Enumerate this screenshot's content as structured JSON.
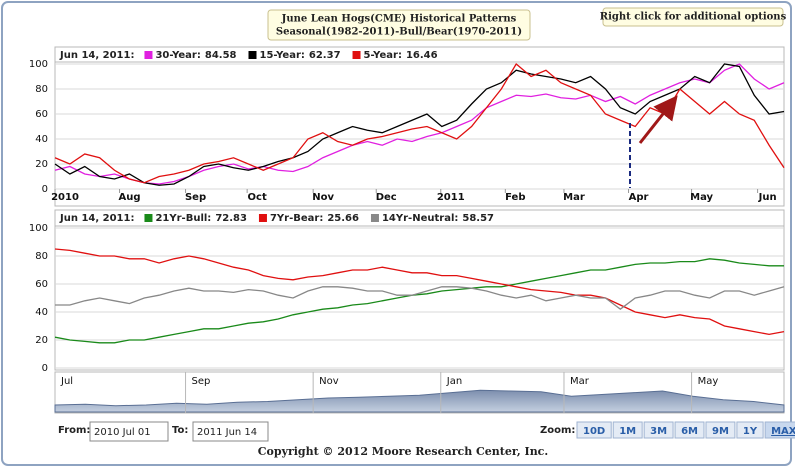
{
  "header": {
    "title": [
      "June Lean Hogs(CME) Historical Patterns",
      "Seasonal(1982-2011)-Bull/Bear(1970-2011)"
    ],
    "options": "Right click for additional options"
  },
  "chart_data": [
    {
      "type": "line",
      "legend_date": "Jun 14, 2011:",
      "xlim": [
        0,
        49.7
      ],
      "ylim": [
        0,
        100
      ],
      "yticks": [
        0,
        20,
        40,
        60,
        80,
        100
      ],
      "grid": true,
      "xticks": [
        {
          "value": 0,
          "label": "2010"
        },
        {
          "value": 4.4,
          "label": "Aug"
        },
        {
          "value": 8.9,
          "label": "Sep"
        },
        {
          "value": 13.1,
          "label": "Oct"
        },
        {
          "value": 17.6,
          "label": "Nov"
        },
        {
          "value": 21.9,
          "label": "Dec"
        },
        {
          "value": 26.3,
          "label": "2011"
        },
        {
          "value": 30.7,
          "label": "Feb"
        },
        {
          "value": 34.7,
          "label": "Mar"
        },
        {
          "value": 39.1,
          "label": "Apr"
        },
        {
          "value": 43.4,
          "label": "May"
        },
        {
          "value": 47.9,
          "label": "Jun"
        }
      ],
      "series": [
        {
          "name": "30-Year:",
          "current": 84.58,
          "color": "#e020e0",
          "values": [
            15,
            18,
            12,
            10,
            12,
            8,
            5,
            4,
            6,
            10,
            15,
            18,
            20,
            16,
            18,
            15,
            14,
            18,
            25,
            30,
            35,
            38,
            35,
            40,
            38,
            42,
            45,
            50,
            55,
            65,
            70,
            75,
            74,
            76,
            73,
            72,
            75,
            70,
            74,
            68,
            75,
            80,
            85,
            88,
            85,
            95,
            100,
            88,
            80,
            85
          ]
        },
        {
          "name": "15-Year:",
          "current": 62.37,
          "color": "#000000",
          "values": [
            20,
            12,
            18,
            10,
            8,
            12,
            5,
            3,
            4,
            10,
            18,
            20,
            17,
            15,
            18,
            22,
            25,
            30,
            40,
            45,
            50,
            47,
            45,
            50,
            55,
            60,
            50,
            55,
            68,
            80,
            85,
            95,
            92,
            90,
            88,
            85,
            90,
            80,
            65,
            60,
            70,
            75,
            80,
            90,
            85,
            100,
            98,
            75,
            60,
            62
          ]
        },
        {
          "name": "5-Year:",
          "current": 16.46,
          "color": "#e01010",
          "values": [
            25,
            20,
            28,
            25,
            15,
            8,
            5,
            10,
            12,
            15,
            20,
            22,
            25,
            20,
            15,
            20,
            25,
            40,
            45,
            38,
            35,
            40,
            42,
            45,
            48,
            50,
            45,
            40,
            50,
            65,
            80,
            100,
            90,
            95,
            85,
            80,
            75,
            60,
            55,
            50,
            65,
            60,
            80,
            70,
            60,
            70,
            60,
            55,
            35,
            17
          ]
        }
      ]
    },
    {
      "type": "line",
      "legend_date": "Jun 14, 2011:",
      "xlim": [
        0,
        49.7
      ],
      "ylim": [
        0,
        100
      ],
      "yticks": [
        0,
        20,
        40,
        60,
        80,
        100
      ],
      "grid": true,
      "series": [
        {
          "name": "21Yr-Bull:",
          "current": 72.83,
          "color": "#1a8a1a",
          "values": [
            22,
            20,
            19,
            18,
            18,
            20,
            20,
            22,
            24,
            26,
            28,
            28,
            30,
            32,
            33,
            35,
            38,
            40,
            42,
            43,
            45,
            46,
            48,
            50,
            52,
            53,
            55,
            56,
            57,
            58,
            58,
            60,
            62,
            64,
            66,
            68,
            70,
            70,
            72,
            74,
            75,
            75,
            76,
            76,
            78,
            77,
            75,
            74,
            73,
            73
          ]
        },
        {
          "name": "7Yr-Bear:",
          "current": 25.66,
          "color": "#e01010",
          "values": [
            85,
            84,
            82,
            80,
            80,
            78,
            78,
            75,
            78,
            80,
            78,
            75,
            72,
            70,
            66,
            64,
            63,
            65,
            66,
            68,
            70,
            70,
            72,
            70,
            68,
            68,
            66,
            66,
            64,
            62,
            60,
            58,
            56,
            55,
            54,
            52,
            52,
            50,
            45,
            40,
            38,
            36,
            38,
            36,
            35,
            30,
            28,
            26,
            24,
            26
          ]
        },
        {
          "name": "14Yr-Neutral:",
          "current": 58.57,
          "color": "#888888",
          "values": [
            45,
            45,
            48,
            50,
            48,
            46,
            50,
            52,
            55,
            57,
            55,
            55,
            54,
            56,
            55,
            52,
            50,
            55,
            58,
            58,
            57,
            55,
            55,
            52,
            52,
            55,
            58,
            58,
            57,
            55,
            52,
            50,
            52,
            48,
            50,
            52,
            50,
            50,
            42,
            50,
            52,
            55,
            55,
            52,
            50,
            55,
            55,
            52,
            55,
            58
          ]
        }
      ]
    },
    {
      "type": "area",
      "color": "#8a9ab6",
      "xlim": [
        0,
        49.7
      ],
      "ylim": [
        0,
        100
      ],
      "xticks": [
        {
          "value": 0,
          "label": "Jul"
        },
        {
          "value": 8.9,
          "label": "Sep"
        },
        {
          "value": 17.6,
          "label": "Nov"
        },
        {
          "value": 26.3,
          "label": "Jan"
        },
        {
          "value": 34.7,
          "label": "Mar"
        },
        {
          "value": 43.4,
          "label": "May"
        }
      ],
      "values": [
        20,
        22,
        18,
        20,
        25,
        22,
        28,
        30,
        35,
        40,
        42,
        45,
        48,
        55,
        62,
        60,
        58,
        45,
        50,
        55,
        60,
        45,
        35,
        30,
        20
      ]
    }
  ],
  "controls": {
    "from_label": "From:",
    "from": "2010 Jul 01",
    "to_label": "To:",
    "to": "2011 Jun 14",
    "zoom_label": "Zoom:",
    "zoom": [
      "10D",
      "1M",
      "3M",
      "6M",
      "9M",
      "1Y",
      "MAX"
    ]
  },
  "copyright": "Copyright © 2012 Moore Research Center, Inc."
}
